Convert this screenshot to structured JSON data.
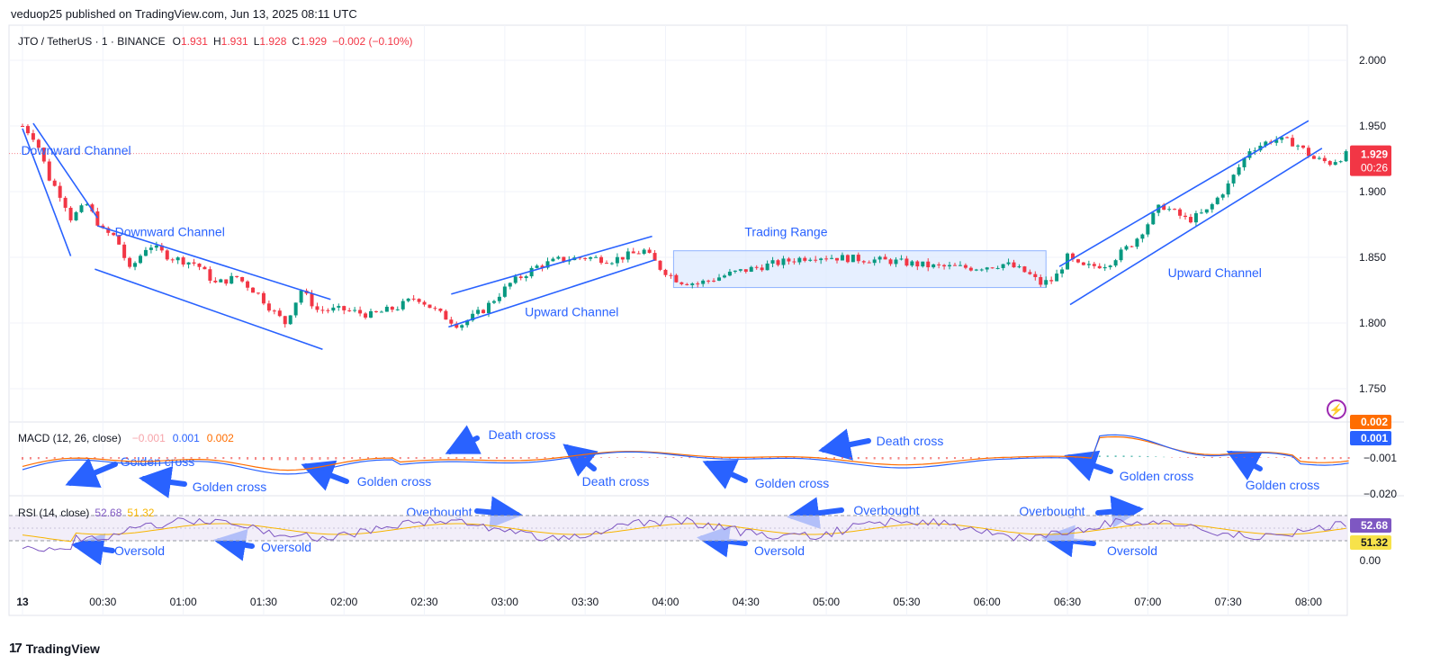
{
  "header": {
    "publisher_line": "veduop25 published on TradingView.com, Jun 13, 2025 08:11 UTC"
  },
  "symbol_bar": {
    "symbol": "JTO / TetherUS · 1 · BINANCE",
    "open_label": "O",
    "open_value": "1.931",
    "high_label": "H",
    "high_value": "1.931",
    "low_label": "L",
    "low_value": "1.928",
    "close_label": "C",
    "close_value": "1.929",
    "change": "−0.002 (−0.10%)"
  },
  "price_axis": {
    "ticks": [
      "2.000",
      "1.950",
      "1.900",
      "1.850",
      "1.800",
      "1.750"
    ],
    "current_price": "1.929",
    "countdown": "00:26"
  },
  "macd": {
    "title": "MACD (12, 26, close)",
    "hist_value": "−0.001",
    "macd_value": "0.001",
    "signal_value": "0.002",
    "axis_labels": [
      "0.002",
      "0.001",
      "−0.001",
      "−0.020"
    ]
  },
  "rsi": {
    "title": "RSI (14, close)",
    "rsi_value": "52.68",
    "ma_value": "51.32",
    "axis_labels": [
      "52.68",
      "51.32",
      "0.00"
    ]
  },
  "time_axis": [
    "13",
    "00:30",
    "01:00",
    "01:30",
    "02:00",
    "02:30",
    "03:00",
    "03:30",
    "04:00",
    "04:30",
    "05:00",
    "05:30",
    "06:00",
    "06:30",
    "07:00",
    "07:30",
    "08:00"
  ],
  "annotations": {
    "price": [
      "Downward Channel",
      "Downward Channel",
      "Upward Channel",
      "Trading Range",
      "Upward Channel"
    ],
    "macd": [
      "Golden cross",
      "Golden cross",
      "Golden cross",
      "Death cross",
      "Death cross",
      "Golden cross",
      "Death cross",
      "Golden cross",
      "Golden cross"
    ],
    "rsi": [
      "Oversold",
      "Oversold",
      "Overbought",
      "Oversold",
      "Overbought",
      "Overbought",
      "Oversold"
    ]
  },
  "footer": {
    "brand": "TradingView"
  },
  "colors": {
    "up": "#089981",
    "down": "#f23645",
    "annotation": "#2962ff",
    "macd_line": "#2962ff",
    "signal_line": "#ff6d00",
    "rsi_line": "#7e57c2",
    "rsi_ma": "#f7b500",
    "range_fill": "#dbe8ff"
  },
  "chart_data": {
    "type": "candlestick",
    "symbol": "JTO / TetherUS",
    "interval": "1",
    "ylim": [
      1.725,
      2.01
    ],
    "x_range": [
      "00:00",
      "08:19"
    ],
    "price_path": [
      [
        "00:00",
        1.95
      ],
      [
        "00:05",
        1.94
      ],
      [
        "00:10",
        1.91
      ],
      [
        "00:15",
        1.895
      ],
      [
        "00:18",
        1.88
      ],
      [
        "00:24",
        1.89
      ],
      [
        "00:30",
        1.87
      ],
      [
        "00:35",
        1.865
      ],
      [
        "00:40",
        1.84
      ],
      [
        "00:47",
        1.86
      ],
      [
        "00:55",
        1.85
      ],
      [
        "01:05",
        1.845
      ],
      [
        "01:12",
        1.83
      ],
      [
        "01:20",
        1.835
      ],
      [
        "01:28",
        1.822
      ],
      [
        "01:33",
        1.81
      ],
      [
        "01:38",
        1.8
      ],
      [
        "01:44",
        1.825
      ],
      [
        "01:50",
        1.81
      ],
      [
        "02:00",
        1.81
      ],
      [
        "02:10",
        1.806
      ],
      [
        "02:20",
        1.812
      ],
      [
        "02:27",
        1.82
      ],
      [
        "02:35",
        1.808
      ],
      [
        "02:43",
        1.798
      ],
      [
        "02:52",
        1.81
      ],
      [
        "03:02",
        1.83
      ],
      [
        "03:12",
        1.843
      ],
      [
        "03:20",
        1.848
      ],
      [
        "03:30",
        1.85
      ],
      [
        "03:40",
        1.848
      ],
      [
        "03:52",
        1.855
      ],
      [
        "03:58",
        1.842
      ],
      [
        "04:05",
        1.832
      ],
      [
        "04:12",
        1.83
      ],
      [
        "04:25",
        1.838
      ],
      [
        "04:40",
        1.845
      ],
      [
        "04:55",
        1.851
      ],
      [
        "05:10",
        1.849
      ],
      [
        "05:25",
        1.847
      ],
      [
        "05:40",
        1.843
      ],
      [
        "05:55",
        1.842
      ],
      [
        "06:07",
        1.845
      ],
      [
        "06:15",
        1.838
      ],
      [
        "06:20",
        1.83
      ],
      [
        "06:25",
        1.833
      ],
      [
        "06:30",
        1.85
      ],
      [
        "06:35",
        1.842
      ],
      [
        "06:45",
        1.845
      ],
      [
        "06:55",
        1.862
      ],
      [
        "07:05",
        1.89
      ],
      [
        "07:15",
        1.878
      ],
      [
        "07:22",
        1.885
      ],
      [
        "07:30",
        1.905
      ],
      [
        "07:38",
        1.932
      ],
      [
        "07:47",
        1.94
      ],
      [
        "07:55",
        1.937
      ],
      [
        "08:02",
        1.925
      ],
      [
        "08:08",
        1.922
      ],
      [
        "08:15",
        1.929
      ]
    ],
    "indicators": {
      "macd": {
        "params": "12, 26, close",
        "histogram": -0.001,
        "macd": 0.001,
        "signal": 0.002
      },
      "rsi": {
        "params": "14, close",
        "rsi": 52.68,
        "ma": 51.32
      }
    }
  }
}
